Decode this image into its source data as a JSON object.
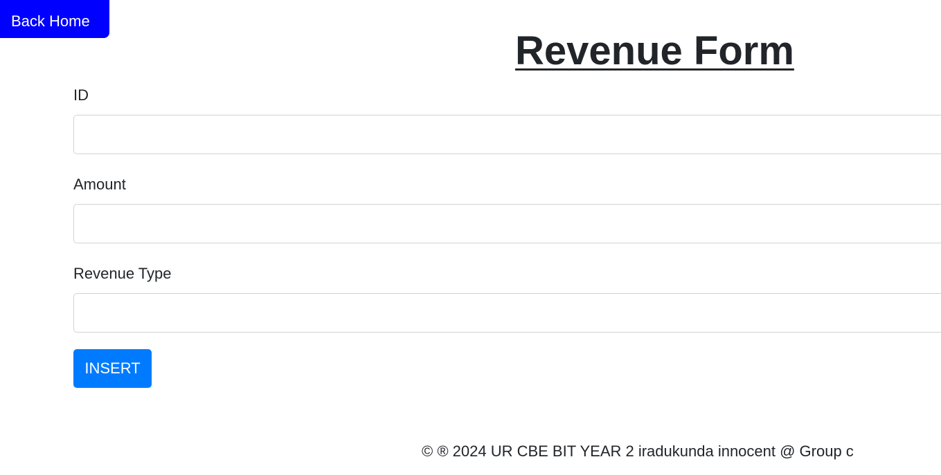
{
  "nav": {
    "back_home_label": "Back Home"
  },
  "form": {
    "title": "Revenue Form",
    "fields": [
      {
        "label": "ID",
        "value": "",
        "placeholder": ""
      },
      {
        "label": "Amount",
        "value": "",
        "placeholder": ""
      },
      {
        "label": "Revenue Type",
        "value": "",
        "placeholder": ""
      }
    ],
    "submit_label": "INSERT"
  },
  "footer": {
    "text": "© ® 2024 UR CBE BIT YEAR 2 iradukunda innocent @ Group c"
  },
  "colors": {
    "back_home_bg": "#0000ff",
    "submit_bg": "#007bff",
    "text": "#212529",
    "input_border": "#ced4da"
  }
}
